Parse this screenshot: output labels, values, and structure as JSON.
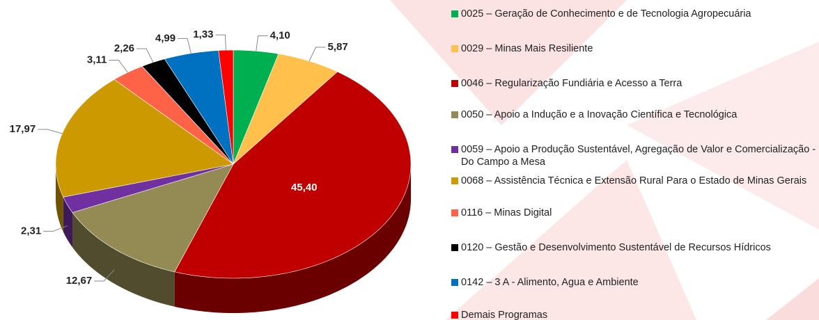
{
  "chart_data": {
    "type": "pie",
    "categories": [
      "0025 – Geração de Conhecimento e  de Tecnologia Agropecuária",
      "0029 – Minas Mais Resiliente",
      "0046 – Regularização Fundiária e Acesso a Terra",
      "0050 – Apoio a Indução e a Inovação Científica e Tecnológica",
      "0059 – Apoio a Produção Sustentável, Agregação de Valor e Comercialização - Do Campo a Mesa",
      "0068 – Assistência Técnica e Extensão Rural Para o Estado de Minas Gerais",
      "0116 – Minas Digital",
      "0120 – Gestão e Desenvolvimento Sustentável de Recursos Hídricos",
      "0142 – 3 A - Alimento, Agua e Ambiente",
      "Demais Programas"
    ],
    "values": [
      4.1,
      5.87,
      45.4,
      12.67,
      2.31,
      17.97,
      3.11,
      2.26,
      4.99,
      1.33
    ],
    "value_labels": [
      "4,10",
      "5,87",
      "45,40",
      "12,67",
      "2,31",
      "17,97",
      "3,11",
      "2,26",
      "4,99",
      "1,33"
    ],
    "colors": [
      "#00b050",
      "#ffc04c",
      "#c00000",
      "#948a54",
      "#7030a0",
      "#cc9900",
      "#ff6347",
      "#000000",
      "#0070c0",
      "#ff0000"
    ],
    "legend": "right"
  }
}
